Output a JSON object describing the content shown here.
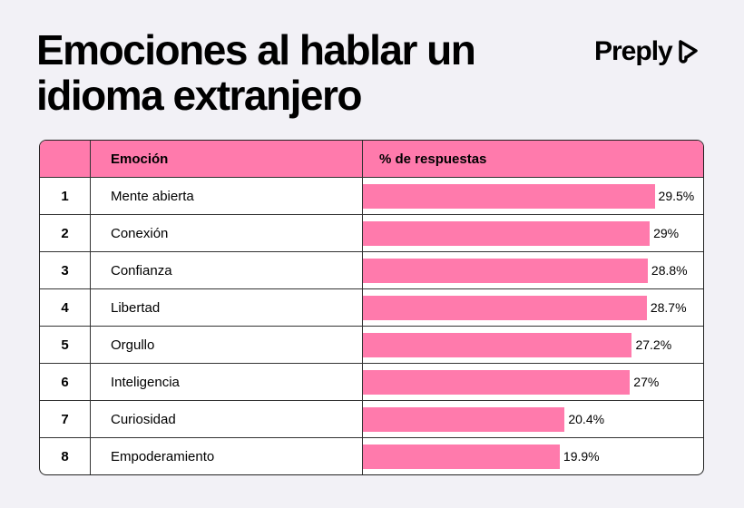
{
  "title": "Emociones al hablar un idioma extranjero",
  "brand": "Preply",
  "colors": {
    "accent": "#ff7aac",
    "background": "#f2f1f6"
  },
  "chart_data": {
    "type": "bar",
    "title": "Emociones al hablar un idioma extranjero",
    "columns": [
      "",
      "Emoción",
      "% de respuestas"
    ],
    "ranks": [
      "1",
      "2",
      "3",
      "4",
      "5",
      "6",
      "7",
      "8"
    ],
    "categories": [
      "Mente abierta",
      "Conexión",
      "Confianza",
      "Libertad",
      "Orgullo",
      "Inteligencia",
      "Curiosidad",
      "Empoderamiento"
    ],
    "values": [
      29.5,
      29,
      28.8,
      28.7,
      27.2,
      27,
      20.4,
      19.9
    ],
    "labels": [
      "29.5%",
      "29%",
      "28.8%",
      "28.7%",
      "27.2%",
      "27%",
      "20.4%",
      "19.9%"
    ],
    "orientation": "horizontal"
  }
}
